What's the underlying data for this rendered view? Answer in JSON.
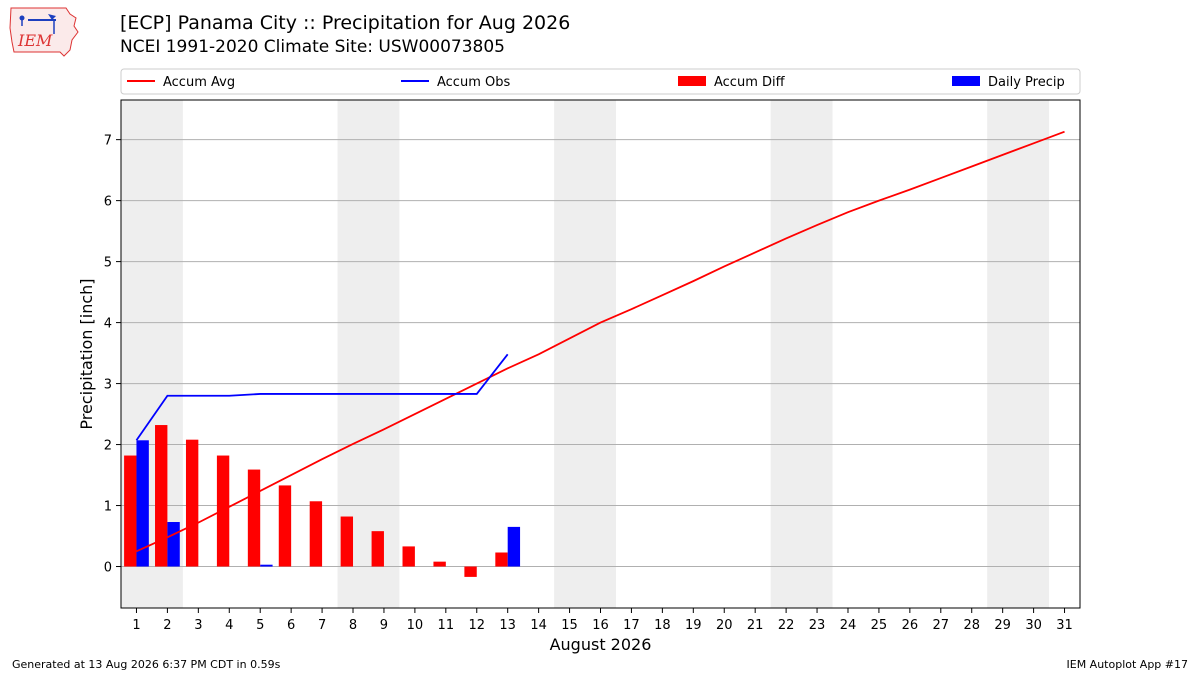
{
  "header": {
    "title": "[ECP] Panama City :: Precipitation for Aug 2026",
    "subtitle": "NCEI 1991-2020 Climate Site: USW00073805",
    "logo_text": "IEM"
  },
  "footer": {
    "generated": "Generated at 13 Aug 2026 6:37 PM CDT in 0.59s",
    "app": "IEM Autoplot App #17"
  },
  "colors": {
    "avg": "#ff0000",
    "obs": "#0000ff",
    "diff": "#ff0000",
    "daily": "#0000ff",
    "weekend_band": "#eeeeee",
    "grid": "#b0b0b0"
  },
  "chart_data": {
    "type": "bar",
    "xlabel": "August 2026",
    "ylabel": "Precipitation [inch]",
    "xlim": [
      0.5,
      31.5
    ],
    "ylim": [
      -0.68,
      7.65
    ],
    "yticks": [
      0,
      1,
      2,
      3,
      4,
      5,
      6,
      7
    ],
    "x": [
      1,
      2,
      3,
      4,
      5,
      6,
      7,
      8,
      9,
      10,
      11,
      12,
      13,
      14,
      15,
      16,
      17,
      18,
      19,
      20,
      21,
      22,
      23,
      24,
      25,
      26,
      27,
      28,
      29,
      30,
      31
    ],
    "weekend_days": [
      [
        1,
        2
      ],
      [
        8,
        9
      ],
      [
        15,
        16
      ],
      [
        22,
        23
      ],
      [
        29,
        30
      ]
    ],
    "grid": "horizontal",
    "legend": {
      "placement": "top",
      "columns": 4
    },
    "series": [
      {
        "name": "Accum Avg",
        "kind": "line",
        "x": [
          1,
          2,
          3,
          4,
          5,
          6,
          7,
          8,
          9,
          10,
          11,
          12,
          13,
          14,
          15,
          16,
          17,
          18,
          19,
          20,
          21,
          22,
          23,
          24,
          25,
          26,
          27,
          28,
          29,
          30,
          31
        ],
        "values": [
          0.25,
          0.48,
          0.72,
          0.98,
          1.24,
          1.5,
          1.76,
          2.01,
          2.25,
          2.5,
          2.75,
          3.0,
          3.25,
          3.48,
          3.74,
          4.0,
          4.22,
          4.45,
          4.68,
          4.92,
          5.15,
          5.38,
          5.6,
          5.81,
          6.0,
          6.18,
          6.37,
          6.56,
          6.75,
          6.94,
          7.13
        ]
      },
      {
        "name": "Accum Obs",
        "kind": "line",
        "x": [
          1,
          2,
          3,
          4,
          5,
          6,
          7,
          8,
          9,
          10,
          11,
          12,
          13
        ],
        "values": [
          2.07,
          2.8,
          2.8,
          2.8,
          2.83,
          2.83,
          2.83,
          2.83,
          2.83,
          2.83,
          2.83,
          2.83,
          3.48
        ]
      },
      {
        "name": "Accum Diff",
        "kind": "bar",
        "x": [
          1,
          2,
          3,
          4,
          5,
          6,
          7,
          8,
          9,
          10,
          11,
          12,
          13
        ],
        "values": [
          1.82,
          2.32,
          2.08,
          1.82,
          1.59,
          1.33,
          1.07,
          0.82,
          0.58,
          0.33,
          0.08,
          -0.17,
          0.23
        ]
      },
      {
        "name": "Daily Precip",
        "kind": "bar",
        "x": [
          1,
          2,
          3,
          4,
          5,
          6,
          7,
          8,
          9,
          10,
          11,
          12,
          13
        ],
        "values": [
          2.07,
          0.73,
          0,
          0,
          0.03,
          0,
          0,
          0,
          0,
          0,
          0,
          0,
          0.65
        ]
      }
    ]
  }
}
